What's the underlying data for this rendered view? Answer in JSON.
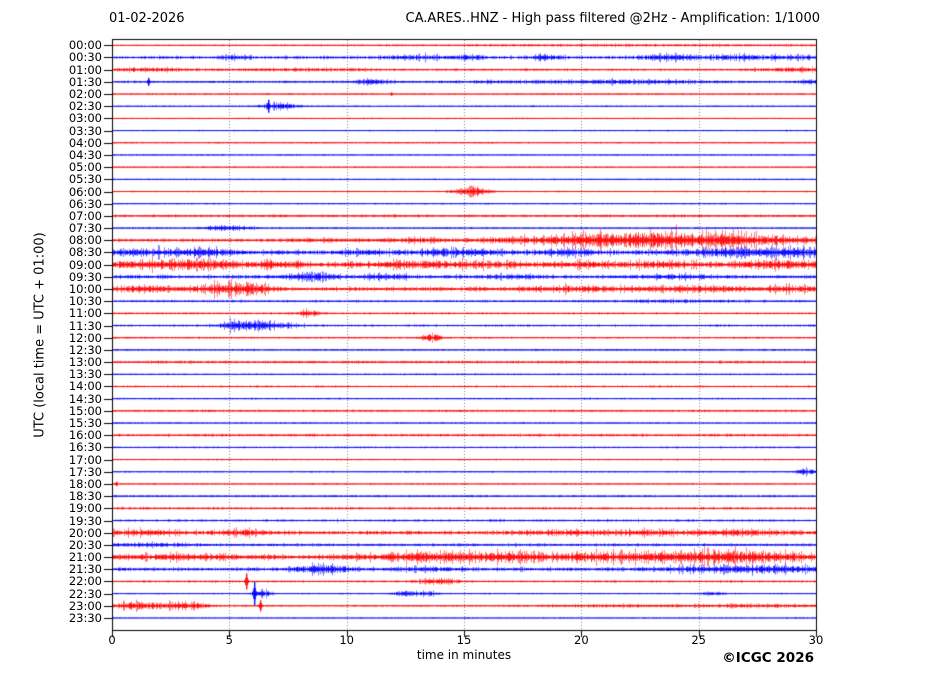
{
  "header": {
    "date": "01-02-2026",
    "title": "CA.ARES..HNZ - High pass filtered @2Hz - Amplification: 1/1000"
  },
  "footer": {
    "copyright": "©ICGC 2026"
  },
  "chart_data": {
    "type": "line",
    "subtype": "helicorder-seismogram",
    "title": "CA.ARES..HNZ - High pass filtered @2Hz - Amplification: 1/1000",
    "date": "01-02-2026",
    "xlabel": "time in minutes",
    "ylabel": "UTC (local time = UTC + 01:00)",
    "xlim": [
      0,
      30
    ],
    "x_ticks": [
      0,
      5,
      10,
      15,
      20,
      25,
      30
    ],
    "grid": "vertical-dotted-at-5min",
    "minutes_per_row": 30,
    "row_interval": "00:30",
    "colors": {
      "red": "#ff0000",
      "blue": "#0000ff",
      "grid": "#888888",
      "frame": "#000000"
    },
    "traces": [
      {
        "l": "00:00",
        "c": "red",
        "n": 0.45,
        "b": [
          [
            22,
            8,
            0.25
          ]
        ],
        "s": []
      },
      {
        "l": "00:30",
        "c": "blue",
        "n": 1.1,
        "b": [
          [
            5.3,
            0.4,
            0.7
          ],
          [
            13,
            1,
            0.6
          ],
          [
            15.2,
            0.5,
            0.6
          ],
          [
            18.6,
            0.5,
            0.8
          ],
          [
            23.6,
            0.8,
            0.9
          ],
          [
            26.5,
            1,
            0.6
          ],
          [
            29,
            0.8,
            0.6
          ]
        ],
        "s": []
      },
      {
        "l": "01:00",
        "c": "red",
        "n": 0.8,
        "b": [
          [
            1.5,
            1,
            0.5
          ],
          [
            8,
            2,
            0.3
          ],
          [
            29,
            1,
            0.5
          ]
        ],
        "s": []
      },
      {
        "l": "01:30",
        "c": "blue",
        "n": 0.75,
        "b": [
          [
            11,
            0.5,
            0.9
          ],
          [
            19,
            3,
            0.4
          ],
          [
            23,
            2,
            0.4
          ],
          [
            30,
            0.5,
            0.8
          ]
        ],
        "s": [
          [
            1.55,
            4
          ]
        ]
      },
      {
        "l": "02:00",
        "c": "red",
        "n": 0.55,
        "b": [],
        "s": [
          [
            11.9,
            1.8
          ]
        ]
      },
      {
        "l": "02:30",
        "c": "blue",
        "n": 0.5,
        "b": [
          [
            7.2,
            0.5,
            1.2
          ]
        ],
        "s": [
          [
            6.65,
            6.5
          ]
        ]
      },
      {
        "l": "03:00",
        "c": "red",
        "n": 0.45,
        "b": [],
        "s": []
      },
      {
        "l": "03:30",
        "c": "blue",
        "n": 0.45,
        "b": [],
        "s": []
      },
      {
        "l": "04:00",
        "c": "red",
        "n": 0.5,
        "b": [],
        "s": []
      },
      {
        "l": "04:30",
        "c": "blue",
        "n": 0.45,
        "b": [],
        "s": []
      },
      {
        "l": "05:00",
        "c": "red",
        "n": 0.5,
        "b": [],
        "s": []
      },
      {
        "l": "05:30",
        "c": "blue",
        "n": 0.5,
        "b": [],
        "s": []
      },
      {
        "l": "06:00",
        "c": "red",
        "n": 0.5,
        "b": [
          [
            15.3,
            0.5,
            1.6
          ]
        ],
        "s": []
      },
      {
        "l": "06:30",
        "c": "blue",
        "n": 0.5,
        "b": [],
        "s": []
      },
      {
        "l": "07:00",
        "c": "red",
        "n": 0.95,
        "b": [],
        "s": []
      },
      {
        "l": "07:30",
        "c": "blue",
        "n": 0.6,
        "b": [
          [
            4.9,
            0.7,
            0.9
          ]
        ],
        "s": []
      },
      {
        "l": "08:00",
        "c": "red",
        "n": 1.2,
        "b": [
          [
            9,
            1,
            0.4
          ],
          [
            13,
            1,
            0.5
          ],
          [
            18,
            1.5,
            1.0
          ],
          [
            20.5,
            1,
            1.2
          ],
          [
            22.5,
            1.5,
            1.5
          ],
          [
            24,
            1.5,
            1.6
          ],
          [
            26,
            1,
            1.3
          ],
          [
            28,
            1.5,
            1.2
          ]
        ],
        "s": []
      },
      {
        "l": "08:30",
        "c": "blue",
        "n": 1.7,
        "b": [
          [
            2,
            1.5,
            0.8
          ],
          [
            4,
            0.8,
            0.9
          ],
          [
            10.5,
            0.7,
            0.6
          ],
          [
            14.5,
            1.5,
            0.8
          ],
          [
            19.5,
            1,
            0.7
          ],
          [
            26.5,
            1.5,
            1.3
          ],
          [
            29,
            1,
            1.0
          ]
        ],
        "s": []
      },
      {
        "l": "09:00",
        "c": "red",
        "n": 1.8,
        "b": [
          [
            1.5,
            1.5,
            1.0
          ],
          [
            4,
            1,
            1.1
          ],
          [
            7,
            0.8,
            0.8
          ],
          [
            12.5,
            1.5,
            0.9
          ],
          [
            16,
            1,
            0.6
          ],
          [
            20,
            1,
            0.7
          ],
          [
            23.5,
            1,
            0.8
          ],
          [
            28.5,
            1.5,
            1.0
          ]
        ],
        "s": []
      },
      {
        "l": "09:30",
        "c": "blue",
        "n": 1.3,
        "b": [
          [
            8.5,
            0.8,
            1.2
          ],
          [
            11.7,
            0.6,
            0.8
          ],
          [
            17,
            1,
            0.5
          ],
          [
            24,
            1,
            0.6
          ]
        ],
        "s": []
      },
      {
        "l": "10:00",
        "c": "red",
        "n": 1.5,
        "b": [
          [
            1.5,
            1,
            0.7
          ],
          [
            4.8,
            0.9,
            1.6
          ],
          [
            6,
            0.5,
            1.0
          ],
          [
            20,
            1.5,
            0.6
          ],
          [
            25,
            1.5,
            0.7
          ],
          [
            29,
            1,
            0.8
          ]
        ],
        "s": []
      },
      {
        "l": "10:30",
        "c": "blue",
        "n": 0.8,
        "b": [
          [
            24,
            2,
            0.3
          ]
        ],
        "s": []
      },
      {
        "l": "11:00",
        "c": "red",
        "n": 0.7,
        "b": [
          [
            8.4,
            0.4,
            1.0
          ]
        ],
        "s": []
      },
      {
        "l": "11:30",
        "c": "blue",
        "n": 0.75,
        "b": [
          [
            5.2,
            0.4,
            0.8
          ],
          [
            6.3,
            0.9,
            1.5
          ]
        ],
        "s": []
      },
      {
        "l": "12:00",
        "c": "red",
        "n": 0.6,
        "b": [
          [
            13.6,
            0.3,
            1.4
          ]
        ],
        "s": []
      },
      {
        "l": "12:30",
        "c": "blue",
        "n": 0.65,
        "b": [],
        "s": []
      },
      {
        "l": "13:00",
        "c": "red",
        "n": 0.95,
        "b": [],
        "s": []
      },
      {
        "l": "13:30",
        "c": "blue",
        "n": 0.55,
        "b": [],
        "s": []
      },
      {
        "l": "14:00",
        "c": "red",
        "n": 0.65,
        "b": [],
        "s": []
      },
      {
        "l": "14:30",
        "c": "blue",
        "n": 0.55,
        "b": [],
        "s": []
      },
      {
        "l": "15:00",
        "c": "red",
        "n": 0.75,
        "b": [],
        "s": []
      },
      {
        "l": "15:30",
        "c": "blue",
        "n": 0.5,
        "b": [],
        "s": []
      },
      {
        "l": "16:00",
        "c": "red",
        "n": 0.95,
        "b": [],
        "s": []
      },
      {
        "l": "16:30",
        "c": "blue",
        "n": 0.6,
        "b": [],
        "s": []
      },
      {
        "l": "17:00",
        "c": "red",
        "n": 0.5,
        "b": [],
        "s": []
      },
      {
        "l": "17:30",
        "c": "blue",
        "n": 0.5,
        "b": [
          [
            29.6,
            0.3,
            1.0
          ]
        ],
        "s": []
      },
      {
        "l": "18:00",
        "c": "red",
        "n": 0.5,
        "b": [],
        "s": [
          [
            0.15,
            2.2
          ]
        ]
      },
      {
        "l": "18:30",
        "c": "blue",
        "n": 0.75,
        "b": [],
        "s": []
      },
      {
        "l": "19:00",
        "c": "red",
        "n": 0.85,
        "b": [],
        "s": []
      },
      {
        "l": "19:30",
        "c": "blue",
        "n": 0.85,
        "b": [],
        "s": []
      },
      {
        "l": "20:00",
        "c": "red",
        "n": 1.4,
        "b": [
          [
            1,
            1.5,
            0.6
          ],
          [
            5.5,
            0.7,
            0.7
          ],
          [
            19,
            1.5,
            0.6
          ],
          [
            23,
            1,
            0.5
          ],
          [
            27,
            1.5,
            0.6
          ]
        ],
        "s": []
      },
      {
        "l": "20:30",
        "c": "blue",
        "n": 1.0,
        "b": [
          [
            1.5,
            1.5,
            0.4
          ]
        ],
        "s": []
      },
      {
        "l": "21:00",
        "c": "red",
        "n": 1.7,
        "b": [
          [
            3,
            2,
            0.6
          ],
          [
            13.5,
            2,
            1.2
          ],
          [
            17,
            1.5,
            1.0
          ],
          [
            21,
            1.5,
            0.9
          ],
          [
            24.5,
            2,
            1.1
          ],
          [
            27.5,
            2,
            1.2
          ]
        ],
        "s": []
      },
      {
        "l": "21:30",
        "c": "blue",
        "n": 1.3,
        "b": [
          [
            9,
            0.8,
            1.3
          ],
          [
            13.5,
            1,
            0.5
          ],
          [
            26,
            2,
            0.8
          ],
          [
            28.5,
            1,
            0.7
          ]
        ],
        "s": []
      },
      {
        "l": "22:00",
        "c": "red",
        "n": 0.75,
        "b": [
          [
            13.6,
            0.4,
            0.8
          ],
          [
            14.3,
            0.3,
            0.7
          ]
        ],
        "s": [
          [
            5.72,
            8
          ]
        ]
      },
      {
        "l": "22:30",
        "c": "blue",
        "n": 0.5,
        "b": [
          [
            6.4,
            0.25,
            1.5
          ],
          [
            12.5,
            0.3,
            1.0
          ],
          [
            13.4,
            0.3,
            0.9
          ],
          [
            25.6,
            0.3,
            0.6
          ]
        ],
        "s": [
          [
            6.05,
            11.5
          ]
        ]
      },
      {
        "l": "23:00",
        "c": "red",
        "n": 0.6,
        "b": [
          [
            0.7,
            0.4,
            1.1
          ],
          [
            1.8,
            0.8,
            0.9
          ],
          [
            3.2,
            0.6,
            1.0
          ],
          [
            22,
            3,
            0.3
          ],
          [
            28,
            2,
            0.4
          ]
        ],
        "s": [
          [
            6.3,
            5.5
          ]
        ]
      },
      {
        "l": "23:30",
        "c": "blue",
        "n": 0.4,
        "b": [],
        "s": []
      }
    ]
  }
}
